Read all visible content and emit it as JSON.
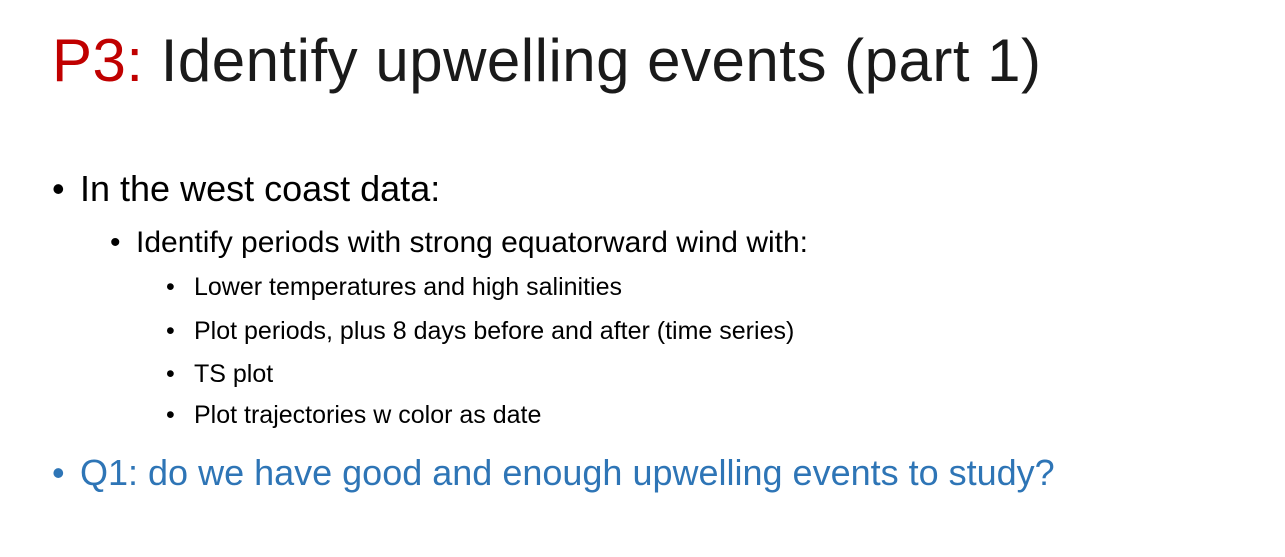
{
  "slide": {
    "title_prefix": "P3:",
    "title_rest": " Identify upwelling events (part 1)",
    "bullet_glyph": "•",
    "bullets": [
      {
        "text": "In the west coast data:"
      },
      {
        "text": "Identify periods with strong equatorward wind with:"
      },
      {
        "text": "Lower temperatures and high salinities"
      },
      {
        "text": "Plot periods, plus 8 days before and after (time series)"
      },
      {
        "text": "TS plot"
      },
      {
        "text": "Plot trajectories w color as date"
      },
      {
        "text": "Q1: do we have good and enough upwelling events to study?"
      }
    ]
  },
  "colors": {
    "title_accent": "#c00000",
    "question_accent": "#2e75b6"
  }
}
